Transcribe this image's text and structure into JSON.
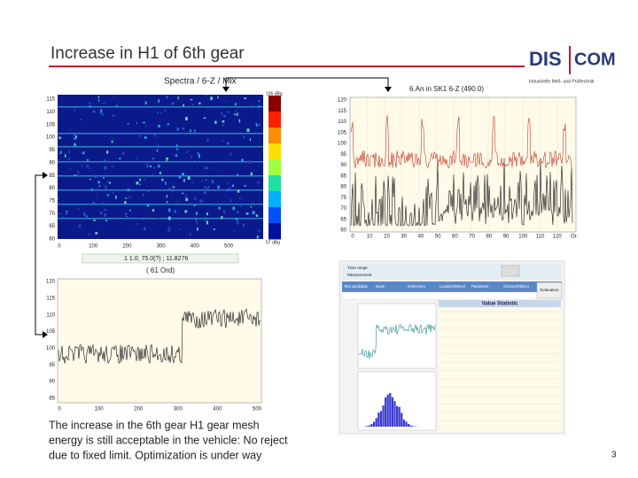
{
  "header": {
    "title": "Increase in H1 of 6th gear"
  },
  "logo": {
    "left": "DIS",
    "right": "COM",
    "tagline": "Industrielle Meß- und Prüftechnik"
  },
  "spectrogram": {
    "title": "Spectra / 6-Z / Mix",
    "yticks": [
      "115",
      "110",
      "105",
      "100",
      "95",
      "90",
      "85",
      "80",
      "75",
      "70",
      "65",
      "60"
    ],
    "xticks": [
      "0",
      "100",
      "200",
      "300",
      "400",
      "500"
    ],
    "colorbar_top": "105 dBg",
    "colorbar_bottom": "57 dBg",
    "info": "1 1.0; 75.0(?) ; 11.8276",
    "order": "( 61 Ord)"
  },
  "order_chart": {
    "title": "6.An in SK1 6-Z (490.0)",
    "yticks": [
      "120",
      "115",
      "110",
      "105",
      "100",
      "95",
      "90",
      "85",
      "80",
      "75",
      "70",
      "65",
      "60"
    ],
    "xticks": [
      "0",
      "10",
      "20",
      "30",
      "40",
      "50",
      "60",
      "70",
      "80",
      "90",
      "100",
      "110",
      "120",
      "Or."
    ]
  },
  "trend_chart": {
    "yticks": [
      "120",
      "115",
      "110",
      "105",
      "100",
      "95",
      "90",
      "85"
    ],
    "xticks": [
      "0",
      "100",
      "200",
      "300",
      "400",
      "500"
    ]
  },
  "software": {
    "panel_title": "Value Statistic",
    "options": [
      "Time range",
      "Measurement"
    ],
    "columns": [
      "Test candidate",
      "Node",
      "Instrument",
      "Location/Wheel",
      "Parameter",
      "Channel/Object"
    ],
    "button": "Evaluation"
  },
  "caption": {
    "lines": [
      "The increase in the 6th gear H1 gear mesh",
      "energy is still acceptable in the vehicle: No reject",
      "due to fixed limit. Optimization is under way"
    ]
  },
  "page_number": "3"
}
